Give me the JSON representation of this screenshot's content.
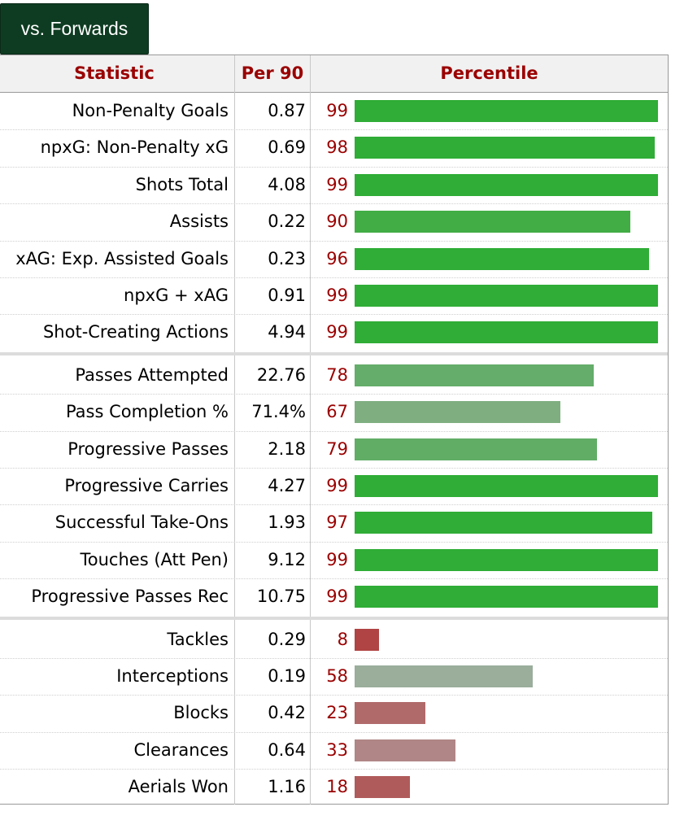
{
  "tab": {
    "label": "vs. Forwards"
  },
  "header": {
    "statistic": "Statistic",
    "per90": "Per 90",
    "percentile": "Percentile"
  },
  "groups": [
    {
      "rows": [
        {
          "stat": "Non-Penalty Goals",
          "per90": "0.87",
          "percentile": 99,
          "color": "#2fad36"
        },
        {
          "stat": "npxG: Non-Penalty xG",
          "per90": "0.69",
          "percentile": 98,
          "color": "#2fad36"
        },
        {
          "stat": "Shots Total",
          "per90": "4.08",
          "percentile": 99,
          "color": "#2fad36"
        },
        {
          "stat": "Assists",
          "per90": "0.22",
          "percentile": 90,
          "color": "#42ad45"
        },
        {
          "stat": "xAG: Exp. Assisted Goals",
          "per90": "0.23",
          "percentile": 96,
          "color": "#2fad36"
        },
        {
          "stat": "npxG + xAG",
          "per90": "0.91",
          "percentile": 99,
          "color": "#2fad36"
        },
        {
          "stat": "Shot-Creating Actions",
          "per90": "4.94",
          "percentile": 99,
          "color": "#2fad36"
        }
      ]
    },
    {
      "rows": [
        {
          "stat": "Passes Attempted",
          "per90": "22.76",
          "percentile": 78,
          "color": "#64ad6a"
        },
        {
          "stat": "Pass Completion %",
          "per90": "71.4%",
          "percentile": 67,
          "color": "#7faf80"
        },
        {
          "stat": "Progressive Passes",
          "per90": "2.18",
          "percentile": 79,
          "color": "#61ad66"
        },
        {
          "stat": "Progressive Carries",
          "per90": "4.27",
          "percentile": 99,
          "color": "#2fad36"
        },
        {
          "stat": "Successful Take-Ons",
          "per90": "1.93",
          "percentile": 97,
          "color": "#2fad36"
        },
        {
          "stat": "Touches (Att Pen)",
          "per90": "9.12",
          "percentile": 99,
          "color": "#2fad36"
        },
        {
          "stat": "Progressive Passes Rec",
          "per90": "10.75",
          "percentile": 99,
          "color": "#2fad36"
        }
      ]
    },
    {
      "rows": [
        {
          "stat": "Tackles",
          "per90": "0.29",
          "percentile": 8,
          "color": "#b04444"
        },
        {
          "stat": "Interceptions",
          "per90": "0.19",
          "percentile": 58,
          "color": "#9aae9b"
        },
        {
          "stat": "Blocks",
          "per90": "0.42",
          "percentile": 23,
          "color": "#b06a6a"
        },
        {
          "stat": "Clearances",
          "per90": "0.64",
          "percentile": 33,
          "color": "#b08686"
        },
        {
          "stat": "Aerials Won",
          "per90": "1.16",
          "percentile": 18,
          "color": "#b05b5b"
        }
      ]
    }
  ]
}
